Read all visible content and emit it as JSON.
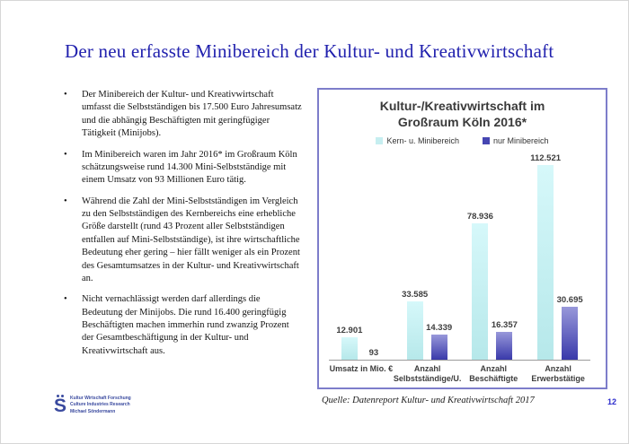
{
  "slide": {
    "title": "Der neu erfasste Minibereich der Kultur- und Kreativwirtschaft",
    "source": "Quelle: Datenreport Kultur- und Kreativwirtschaft 2017",
    "page_number": "12"
  },
  "bullets": [
    "Der Minibereich der Kultur- und Kreativwirtschaft umfasst die Selbstständigen bis 17.500 Euro Jahresumsatz und die abhängig Beschäftigten mit geringfügiger Tätigkeit (Minijobs).",
    "Im Minibereich waren im Jahr 2016* im Großraum Köln schätzungsweise rund 14.300 Mini-Selbstständige mit einem Umsatz von 93 Millionen Euro tätig.",
    "Während die Zahl der Mini-Selbstständigen im Vergleich zu den Selbstständigen des Kernbereichs eine erhebliche Größe darstellt (rund 43 Prozent aller Selbstständigen entfallen auf Mini-Selbstständige), ist ihre wirtschaftliche Bedeutung eher gering – hier fällt weniger als ein Prozent des Gesamtumsatzes in der Kultur- und Kreativwirtschaft an.",
    "Nicht vernachlässigt werden darf allerdings die Bedeutung der Minijobs. Die rund 16.400 geringfügig Beschäftigten machen immerhin rund zwanzig Prozent der Gesamtbeschäftigung in der Kultur- und Kreativwirtschaft aus."
  ],
  "logo": {
    "glyph": "S",
    "lines": [
      "Kultur Wirtschaft Forschung",
      "Culture Industries Research",
      "Michael Söndermann"
    ]
  },
  "chart_data": {
    "type": "bar",
    "title": "Kultur-/Kreativwirtschaft im Großraum Köln 2016*",
    "title_lines": [
      "Kultur-/Kreativwirtschaft im",
      "Großraum Köln 2016*"
    ],
    "categories": [
      "Umsatz in Mio. €",
      "Anzahl\nSelbstständige/U.",
      "Anzahl Beschäftigte",
      "Anzahl\nErwerbstätige"
    ],
    "series": [
      {
        "name": "Kern- u. Minibereich",
        "values": [
          12901,
          33585,
          78936,
          112521
        ],
        "labels": [
          "12.901",
          "33.585",
          "78.936",
          "112.521"
        ],
        "swatch": "#c6eef0",
        "color_top": "#d6f8fa",
        "color_bottom": "#b6e8ea"
      },
      {
        "name": "nur Minibereich",
        "values": [
          93,
          14339,
          16357,
          30695
        ],
        "labels": [
          "93",
          "14.339",
          "16.357",
          "30.695"
        ],
        "swatch": "#4646b2",
        "color_top": "#9898da",
        "color_bottom": "#3939aa"
      }
    ],
    "ylim": [
      0,
      120000
    ],
    "grid": false,
    "data_labels": true,
    "legend_position": "top",
    "xlabel": "",
    "ylabel": "",
    "border_color": "#7d7dca"
  }
}
